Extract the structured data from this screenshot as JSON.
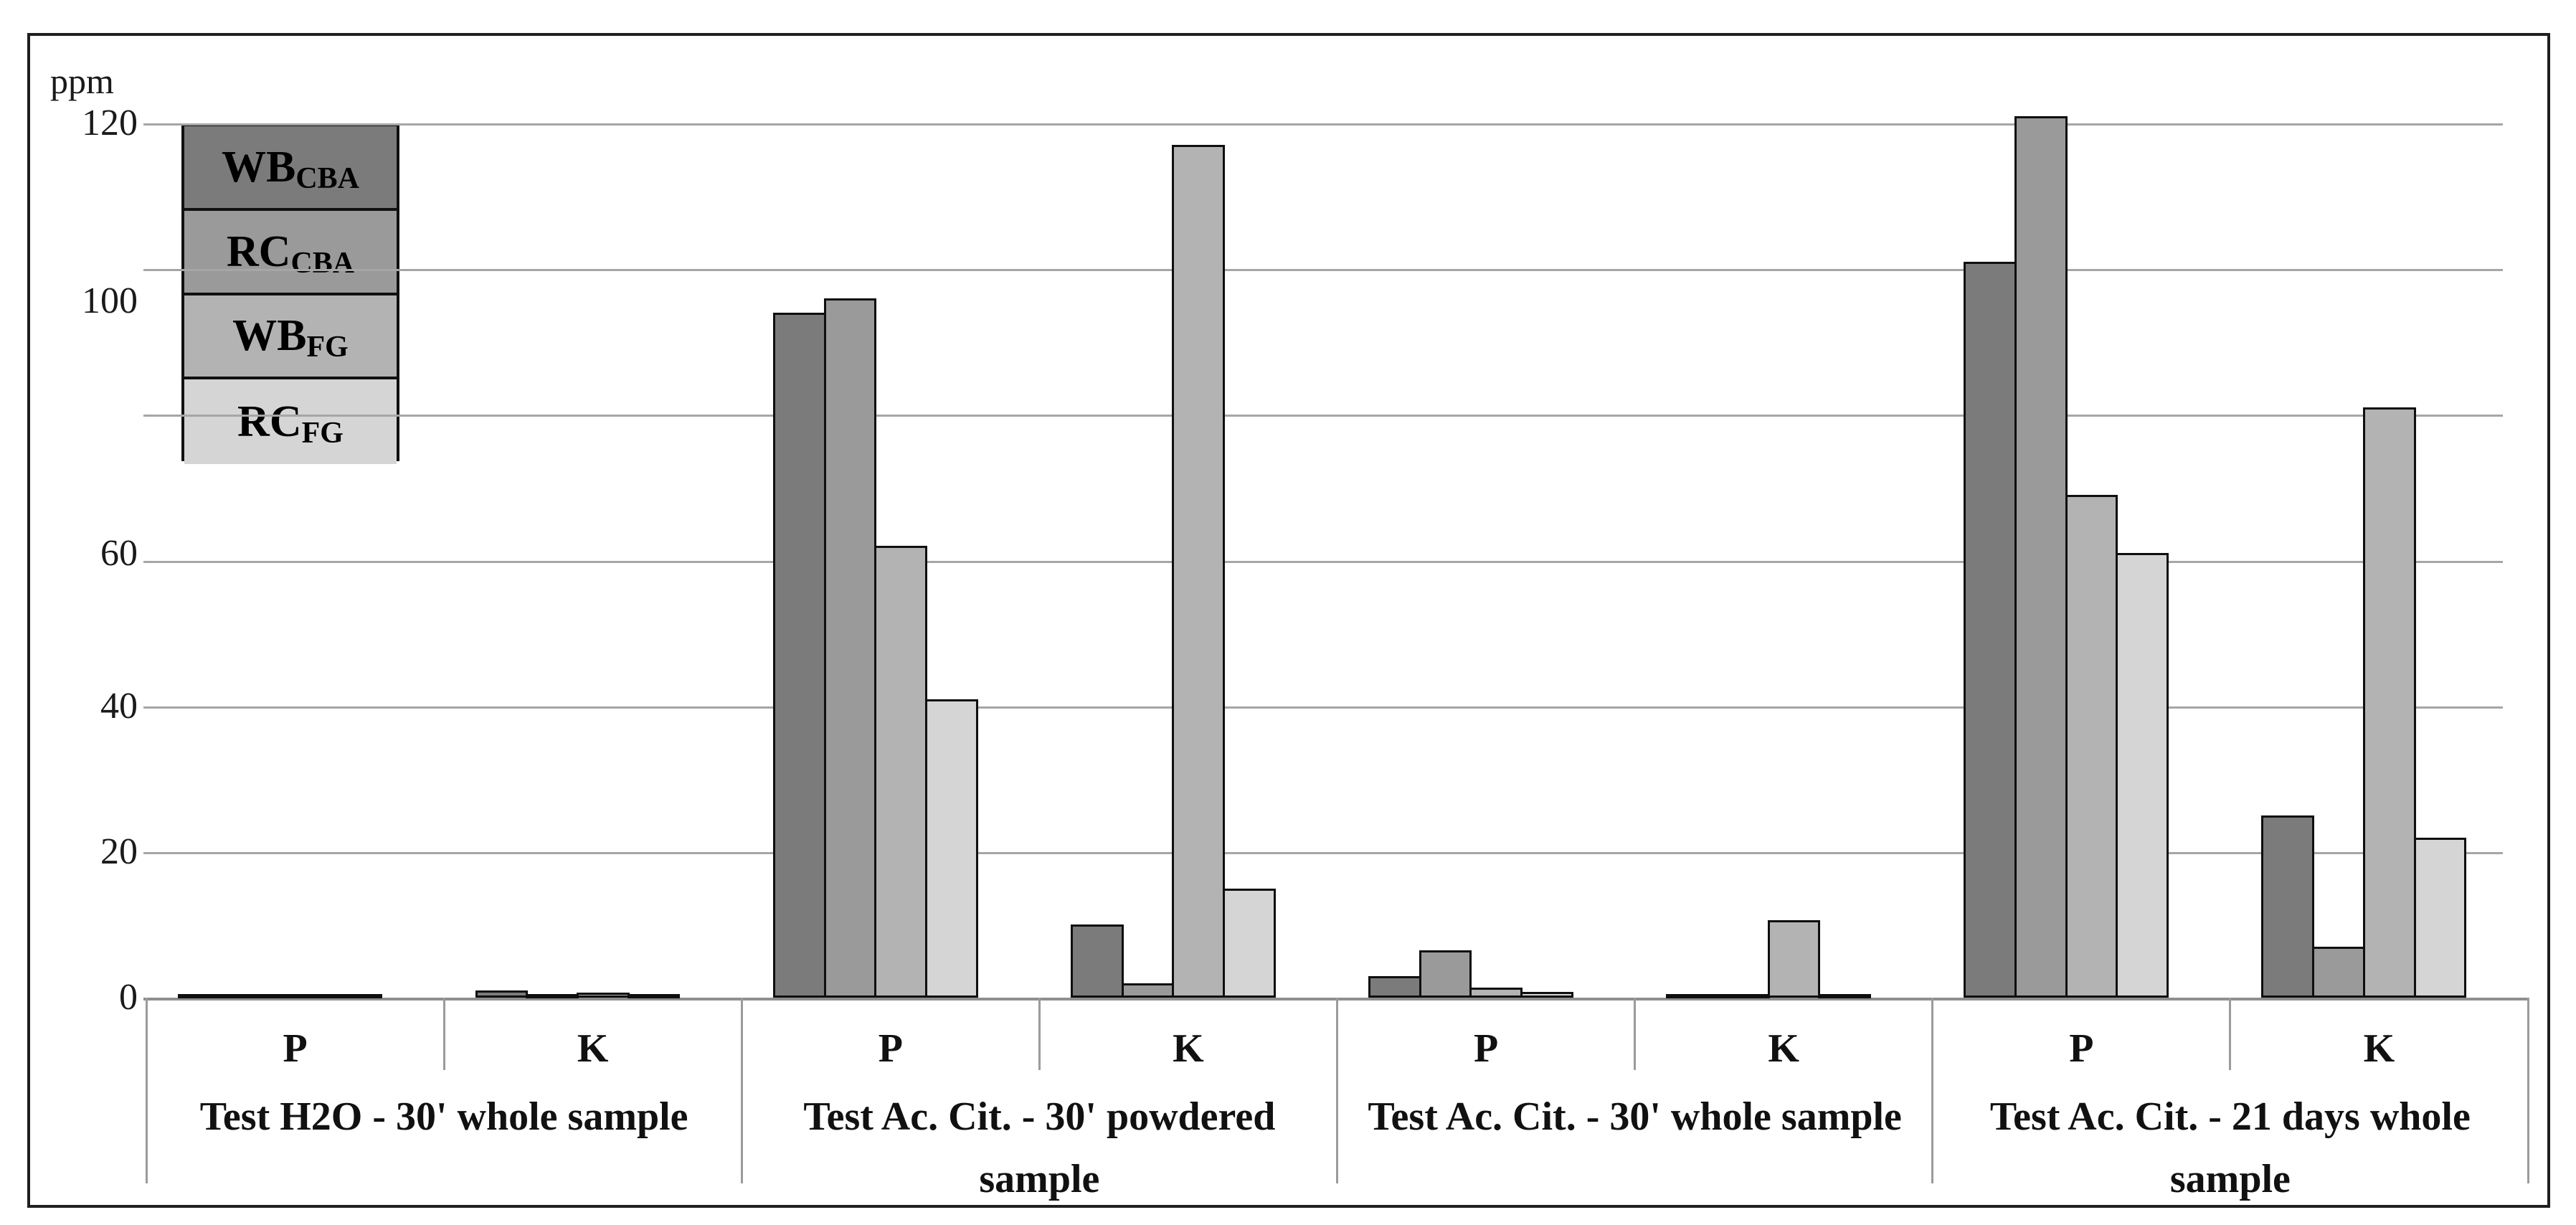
{
  "figure": {
    "unit_label": "ppm",
    "background": "#ffffff",
    "frame_color": "#1f1f1f"
  },
  "axis": {
    "grid_color": "#a6a6a6",
    "baseline_color": "#8f8f8f",
    "separator_color": "#9b9b9b",
    "y_ticks": [
      {
        "value": 120,
        "label": "120"
      },
      {
        "value": 100,
        "label": "100"
      },
      {
        "value": 60,
        "label": "60"
      },
      {
        "value": 40,
        "label": "40"
      },
      {
        "value": 20,
        "label": "20"
      },
      {
        "value": 0,
        "label": "0"
      }
    ]
  },
  "legend": {
    "border_color": "#111111",
    "entries": [
      {
        "main": "WB",
        "sub": "CBA",
        "color": "#7b7b7b"
      },
      {
        "main": "RC",
        "sub": "CBA",
        "color": "#9a9a9a"
      },
      {
        "main": "WB",
        "sub": "FG",
        "color": "#b3b3b3"
      },
      {
        "main": "RC",
        "sub": "FG",
        "color": "#d5d5d5"
      }
    ]
  },
  "chart_data": {
    "type": "bar",
    "title": "",
    "unit": "ppm",
    "ylabel": "ppm",
    "ylim": [
      0,
      120
    ],
    "gridline_step": 20,
    "grid": true,
    "legend_position": "top-left",
    "series_names": [
      "WB_CBA",
      "RC_CBA",
      "WB_FG",
      "RC_FG"
    ],
    "series_colors": [
      "#7b7b7b",
      "#9a9a9a",
      "#b3b3b3",
      "#d5d5d5"
    ],
    "groups": [
      {
        "label": "Test H2O - 30' whole sample",
        "label_lines": [
          "Test H2O - 30' whole sample"
        ],
        "categories": [
          "P",
          "K"
        ],
        "values": {
          "P": [
            0.5,
            0.5,
            0.5,
            0.5
          ],
          "K": [
            1,
            0.5,
            0.7,
            0.5
          ]
        }
      },
      {
        "label": "Test Ac. Cit. - 30' powdered sample",
        "label_lines": [
          "Test Ac. Cit. - 30' powdered",
          "sample"
        ],
        "categories": [
          "P",
          "K"
        ],
        "values": {
          "P": [
            94,
            96,
            62,
            41
          ],
          "K": [
            10,
            2,
            117,
            15
          ]
        }
      },
      {
        "label": "Test Ac. Cit. - 30' whole sample",
        "label_lines": [
          "Test Ac. Cit. - 30' whole sample"
        ],
        "categories": [
          "P",
          "K"
        ],
        "values": {
          "P": [
            3,
            6.5,
            1.4,
            0.8
          ],
          "K": [
            0.5,
            0.5,
            10.6,
            0.5
          ]
        }
      },
      {
        "label": "Test Ac. Cit. - 21 days whole sample",
        "label_lines": [
          "Test Ac. Cit. - 21 days whole",
          "sample"
        ],
        "categories": [
          "P",
          "K"
        ],
        "values": {
          "P": [
            101,
            121,
            69,
            61
          ],
          "K": [
            25,
            7,
            81,
            22
          ]
        }
      }
    ]
  }
}
